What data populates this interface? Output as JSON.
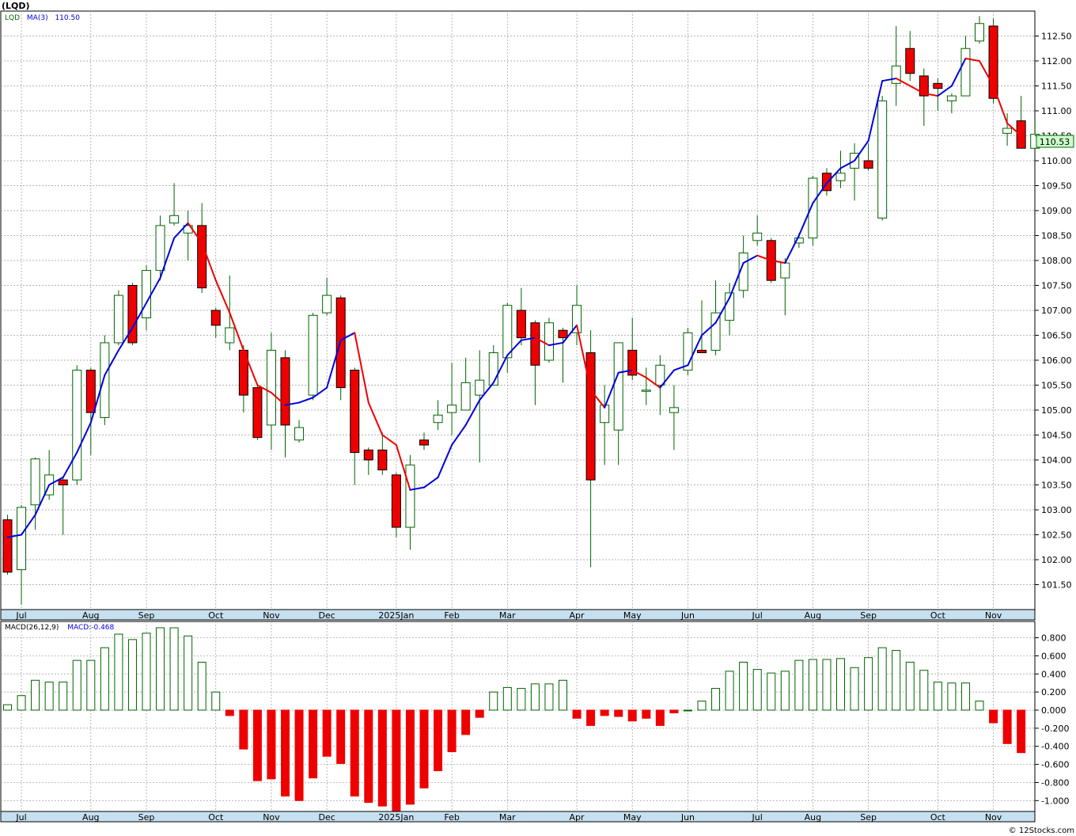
{
  "symbol_title": "(LQD)",
  "watermark": "© 12Stocks.com",
  "colors": {
    "up": "#006400",
    "down": "#ee0000",
    "ma_up": "#0000dd",
    "ma_down": "#ee0000",
    "grid": "#9a9a9a",
    "axis_band": "#c6e0f0",
    "price_badge": "#ccffcc"
  },
  "chart_data": [
    {
      "type": "candlestick",
      "title": "(LQD)",
      "legend": [
        {
          "label": "LQD",
          "color": "#006400"
        },
        {
          "label": "MA(3)",
          "color": "#0000dd"
        },
        {
          "label": "110.50",
          "color": "#0000dd"
        }
      ],
      "last_price_label": "110.53",
      "ylim": [
        101.0,
        113.0
      ],
      "yticks": [
        101.5,
        102.0,
        102.5,
        103.0,
        103.5,
        104.0,
        104.5,
        105.0,
        105.5,
        106.0,
        106.5,
        107.0,
        107.5,
        108.0,
        108.5,
        109.0,
        109.5,
        110.0,
        110.5,
        111.0,
        111.5,
        112.0,
        112.5
      ],
      "ytick_labels": [
        "101.50",
        "102.00",
        "102.50",
        "103.00",
        "103.50",
        "104.00",
        "104.50",
        "105.00",
        "105.50",
        "106.00",
        "106.50",
        "107.00",
        "107.50",
        "108.00",
        "108.50",
        "109.00",
        "109.50",
        "110.00",
        "110.50",
        "111.00",
        "111.50",
        "112.00",
        "112.50"
      ],
      "month_labels": [
        {
          "label": "Jul",
          "index": 1
        },
        {
          "label": "Aug",
          "index": 6
        },
        {
          "label": "Sep",
          "index": 10
        },
        {
          "label": "Oct",
          "index": 15
        },
        {
          "label": "Nov",
          "index": 19
        },
        {
          "label": "Dec",
          "index": 23
        },
        {
          "label": "2025Jan",
          "index": 28
        },
        {
          "label": "Feb",
          "index": 32
        },
        {
          "label": "Mar",
          "index": 36
        },
        {
          "label": "Apr",
          "index": 41
        },
        {
          "label": "May",
          "index": 45
        },
        {
          "label": "Jun",
          "index": 49
        },
        {
          "label": "Jul",
          "index": 54
        },
        {
          "label": "Aug",
          "index": 58
        },
        {
          "label": "Sep",
          "index": 62
        },
        {
          "label": "Oct",
          "index": 67
        },
        {
          "label": "Nov",
          "index": 71
        }
      ],
      "ohlc": [
        [
          102.8,
          102.9,
          101.7,
          101.75
        ],
        [
          101.8,
          103.1,
          101.1,
          103.05
        ],
        [
          103.1,
          104.05,
          102.6,
          104.02
        ],
        [
          103.3,
          104.2,
          103.2,
          103.7
        ],
        [
          103.6,
          103.65,
          102.5,
          103.5
        ],
        [
          103.6,
          105.9,
          103.5,
          105.8
        ],
        [
          105.8,
          105.85,
          104.1,
          104.95
        ],
        [
          104.85,
          106.5,
          104.7,
          106.35
        ],
        [
          106.35,
          107.4,
          106.3,
          107.3
        ],
        [
          107.5,
          107.55,
          106.3,
          106.35
        ],
        [
          106.85,
          107.9,
          106.6,
          107.8
        ],
        [
          107.8,
          108.9,
          107.6,
          108.7
        ],
        [
          108.75,
          109.55,
          108.7,
          108.9
        ],
        [
          108.55,
          109.0,
          108.0,
          108.7
        ],
        [
          108.7,
          109.15,
          107.35,
          107.45
        ],
        [
          107.0,
          107.05,
          106.45,
          106.7
        ],
        [
          106.35,
          107.7,
          106.2,
          106.65
        ],
        [
          106.2,
          106.3,
          104.95,
          105.3
        ],
        [
          105.45,
          105.5,
          104.4,
          104.45
        ],
        [
          104.7,
          106.55,
          104.2,
          106.2
        ],
        [
          106.05,
          106.2,
          104.05,
          104.7
        ],
        [
          104.4,
          104.8,
          104.35,
          104.65
        ],
        [
          105.3,
          106.95,
          105.2,
          106.9
        ],
        [
          106.95,
          107.65,
          106.9,
          107.3
        ],
        [
          107.25,
          107.3,
          105.2,
          105.45
        ],
        [
          105.8,
          105.85,
          103.5,
          104.15
        ],
        [
          104.2,
          104.25,
          103.7,
          104.0
        ],
        [
          104.2,
          104.55,
          103.7,
          103.8
        ],
        [
          103.7,
          103.75,
          102.45,
          102.65
        ],
        [
          102.65,
          104.1,
          102.2,
          103.9
        ],
        [
          104.4,
          104.55,
          104.2,
          104.3
        ],
        [
          104.75,
          105.2,
          104.6,
          104.9
        ],
        [
          104.95,
          105.95,
          104.5,
          105.1
        ],
        [
          105.0,
          106.05,
          105.0,
          105.55
        ],
        [
          105.3,
          106.2,
          103.95,
          105.6
        ],
        [
          105.5,
          106.3,
          105.5,
          106.15
        ],
        [
          106.05,
          107.15,
          105.75,
          107.1
        ],
        [
          107.0,
          107.45,
          106.3,
          106.45
        ],
        [
          106.75,
          106.8,
          105.1,
          105.9
        ],
        [
          106.0,
          106.85,
          105.95,
          106.75
        ],
        [
          106.6,
          106.65,
          105.55,
          106.45
        ],
        [
          106.55,
          107.5,
          106.3,
          107.1
        ],
        [
          106.15,
          106.6,
          101.85,
          103.6
        ],
        [
          104.75,
          105.5,
          103.9,
          105.1
        ],
        [
          104.6,
          106.35,
          103.9,
          106.35
        ],
        [
          106.2,
          106.85,
          105.6,
          105.7
        ],
        [
          105.4,
          105.85,
          105.1,
          105.4
        ],
        [
          105.5,
          106.1,
          104.9,
          105.9
        ],
        [
          104.95,
          105.5,
          104.2,
          105.05
        ],
        [
          105.8,
          106.65,
          105.7,
          106.55
        ],
        [
          106.2,
          107.2,
          106.15,
          106.15
        ],
        [
          106.2,
          107.6,
          106.1,
          106.95
        ],
        [
          106.8,
          107.55,
          106.5,
          107.35
        ],
        [
          107.4,
          108.5,
          107.25,
          108.15
        ],
        [
          108.4,
          108.9,
          108.3,
          108.55
        ],
        [
          108.4,
          108.45,
          107.55,
          107.6
        ],
        [
          107.65,
          108.05,
          106.9,
          107.95
        ],
        [
          108.35,
          108.55,
          108.25,
          108.45
        ],
        [
          108.45,
          109.7,
          108.3,
          109.65
        ],
        [
          109.75,
          109.85,
          109.3,
          109.4
        ],
        [
          109.6,
          110.2,
          109.45,
          109.75
        ],
        [
          109.85,
          110.35,
          109.2,
          110.15
        ],
        [
          110.0,
          110.35,
          109.8,
          109.85
        ],
        [
          108.85,
          111.3,
          108.8,
          111.2
        ],
        [
          111.55,
          112.7,
          111.1,
          111.9
        ],
        [
          112.25,
          112.6,
          111.6,
          111.75
        ],
        [
          111.7,
          111.85,
          110.7,
          111.3
        ],
        [
          111.55,
          111.65,
          111.0,
          111.45
        ],
        [
          111.2,
          111.35,
          110.95,
          111.3
        ],
        [
          111.3,
          112.5,
          111.3,
          112.25
        ],
        [
          112.4,
          112.9,
          112.35,
          112.75
        ],
        [
          112.7,
          112.85,
          111.15,
          111.25
        ],
        [
          110.55,
          110.95,
          110.3,
          110.65
        ],
        [
          110.8,
          111.3,
          110.25,
          110.25
        ],
        [
          110.25,
          110.8,
          110.25,
          110.53
        ]
      ],
      "ma3": [
        102.45,
        102.5,
        102.9,
        103.5,
        103.65,
        104.15,
        104.75,
        105.7,
        106.2,
        106.65,
        107.15,
        107.65,
        108.45,
        108.75,
        108.35,
        107.6,
        106.95,
        106.2,
        105.5,
        105.35,
        105.1,
        105.15,
        105.25,
        105.45,
        106.4,
        106.55,
        105.15,
        104.5,
        104.3,
        103.4,
        103.45,
        103.65,
        104.3,
        104.7,
        105.2,
        105.55,
        106.1,
        106.4,
        106.45,
        106.3,
        106.35,
        106.7,
        105.4,
        105.05,
        105.75,
        105.8,
        105.65,
        105.45,
        105.8,
        105.9,
        106.5,
        106.75,
        107.25,
        107.95,
        108.1,
        108.0,
        107.95,
        108.5,
        109.15,
        109.55,
        109.85,
        110.0,
        110.4,
        111.6,
        111.65,
        111.5,
        111.35,
        111.3,
        111.5,
        112.05,
        112.0,
        111.5,
        110.75,
        110.5
      ],
      "ma3_last": "110.50"
    },
    {
      "type": "bar",
      "title": "MACD(26,12,9)",
      "legend": [
        {
          "label": "MACD(26,12,9)",
          "color": "#000000"
        },
        {
          "label": "MACD:-0.468",
          "color": "#0000dd"
        }
      ],
      "ylim": [
        -1.12,
        0.98
      ],
      "yticks": [
        -1.0,
        -0.8,
        -0.6,
        -0.4,
        -0.2,
        0.0,
        0.2,
        0.4,
        0.6,
        0.8
      ],
      "ytick_labels": [
        "-1.000",
        "-0.800",
        "-0.600",
        "-0.400",
        "-0.200",
        "0.000",
        "0.200",
        "0.400",
        "0.600",
        "0.800"
      ],
      "values": [
        0.06,
        0.16,
        0.33,
        0.31,
        0.31,
        0.55,
        0.55,
        0.69,
        0.84,
        0.78,
        0.85,
        0.91,
        0.91,
        0.82,
        0.53,
        0.2,
        -0.06,
        -0.43,
        -0.78,
        -0.76,
        -0.95,
        -1.0,
        -0.75,
        -0.51,
        -0.59,
        -0.95,
        -1.02,
        -1.06,
        -1.16,
        -1.04,
        -0.86,
        -0.67,
        -0.46,
        -0.27,
        -0.08,
        0.2,
        0.25,
        0.24,
        0.29,
        0.29,
        0.33,
        -0.09,
        -0.17,
        -0.06,
        -0.07,
        -0.12,
        -0.09,
        -0.17,
        -0.03,
        0.0,
        0.1,
        0.24,
        0.43,
        0.53,
        0.45,
        0.41,
        0.43,
        0.55,
        0.56,
        0.56,
        0.57,
        0.47,
        0.58,
        0.69,
        0.66,
        0.53,
        0.44,
        0.31,
        0.3,
        0.3,
        0.1,
        -0.14,
        -0.37,
        -0.47
      ]
    }
  ]
}
